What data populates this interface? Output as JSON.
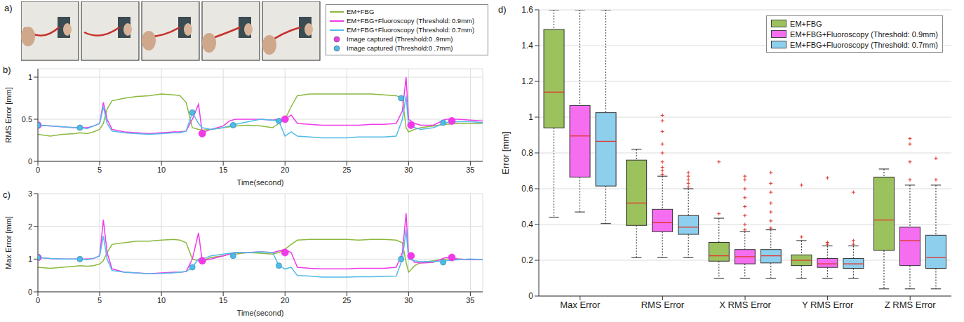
{
  "panel_a": {
    "label": "a)"
  },
  "chart_data": [
    {
      "type": "line",
      "label": "b)",
      "x_label": "Time(second)",
      "y_label": "RMS Error [mm]",
      "xlim": [
        0,
        36
      ],
      "xticks": [
        0,
        5,
        10,
        15,
        20,
        25,
        30,
        35
      ],
      "ylim": [
        0,
        1.1
      ],
      "yticks": [
        0,
        0.5,
        1
      ],
      "grid": true,
      "legend": "upper right",
      "x": [
        0,
        1,
        2,
        3,
        3.4,
        4,
        4.5,
        5,
        5.3,
        5.6,
        6,
        7,
        8,
        9,
        10,
        11,
        11.5,
        12,
        12.5,
        13,
        13.3,
        14,
        15,
        15.5,
        16,
        17,
        18,
        19,
        19.5,
        20,
        20.5,
        21,
        22,
        23,
        24,
        25,
        26,
        27,
        28,
        29,
        29.5,
        29.8,
        30,
        30.5,
        31,
        32,
        33,
        34,
        35,
        36
      ],
      "series": [
        {
          "name": "EM+FBG",
          "color": "#8cb83f",
          "values": [
            0.32,
            0.3,
            0.32,
            0.33,
            0.34,
            0.33,
            0.35,
            0.38,
            0.45,
            0.62,
            0.72,
            0.75,
            0.77,
            0.78,
            0.8,
            0.79,
            0.78,
            0.7,
            0.4,
            0.38,
            0.37,
            0.38,
            0.4,
            0.41,
            0.42,
            0.43,
            0.42,
            0.4,
            0.45,
            0.5,
            0.65,
            0.78,
            0.8,
            0.8,
            0.8,
            0.8,
            0.8,
            0.8,
            0.79,
            0.78,
            0.75,
            0.4,
            0.35,
            0.38,
            0.4,
            0.42,
            0.44,
            0.45,
            0.45,
            0.45
          ]
        },
        {
          "name": "EM+FBG+Fluoroscopy (Threshold: 0.9mm)",
          "color": "#f03ae8",
          "values": [
            0.43,
            0.42,
            0.41,
            0.4,
            0.4,
            0.4,
            0.42,
            0.45,
            0.7,
            0.5,
            0.38,
            0.35,
            0.34,
            0.33,
            0.34,
            0.35,
            0.35,
            0.36,
            0.5,
            0.68,
            0.34,
            0.38,
            0.42,
            0.48,
            0.5,
            0.5,
            0.5,
            0.49,
            0.5,
            0.5,
            0.55,
            0.45,
            0.44,
            0.43,
            0.43,
            0.43,
            0.43,
            0.44,
            0.44,
            0.45,
            0.6,
            1.0,
            0.5,
            0.45,
            0.43,
            0.43,
            0.5,
            0.5,
            0.49,
            0.48
          ]
        },
        {
          "name": "EM+FBG+Fluoroscopy (Threshold: 0.7mm)",
          "color": "#4fbbe9",
          "values": [
            0.43,
            0.42,
            0.41,
            0.4,
            0.4,
            0.39,
            0.42,
            0.45,
            0.65,
            0.45,
            0.36,
            0.34,
            0.33,
            0.32,
            0.33,
            0.34,
            0.34,
            0.36,
            0.58,
            0.45,
            0.4,
            0.38,
            0.4,
            0.42,
            0.44,
            0.47,
            0.5,
            0.49,
            0.48,
            0.3,
            0.35,
            0.3,
            0.29,
            0.28,
            0.28,
            0.28,
            0.29,
            0.29,
            0.29,
            0.3,
            0.5,
            0.78,
            0.42,
            0.4,
            0.38,
            0.4,
            0.46,
            0.47,
            0.47,
            0.46
          ]
        },
        {
          "name": "Image captured (Threshold:0 .9mm)",
          "type": "scatter",
          "marker": "circle",
          "color": "#f03ae8",
          "x": [
            0,
            13.3,
            20,
            30.2,
            33.5
          ],
          "values": [
            0.43,
            0.33,
            0.5,
            0.43,
            0.48
          ]
        },
        {
          "name": "Image captured (Threshold:0 .7mm)",
          "type": "scatter",
          "marker": "circle",
          "color": "#4fbbe9",
          "x": [
            0,
            3.4,
            12.5,
            15.8,
            19.5,
            29.4,
            32.8
          ],
          "values": [
            0.43,
            0.4,
            0.58,
            0.43,
            0.48,
            0.75,
            0.46
          ]
        }
      ]
    },
    {
      "type": "line",
      "label": "c)",
      "x_label": "Time(second)",
      "y_label": "Max Error [mm]",
      "xlim": [
        0,
        36
      ],
      "xticks": [
        0,
        5,
        10,
        15,
        20,
        25,
        30,
        35
      ],
      "ylim": [
        0,
        3
      ],
      "yticks": [
        0,
        1,
        2,
        3
      ],
      "grid": true,
      "x": [
        0,
        1,
        2,
        3,
        3.4,
        4,
        4.5,
        5,
        5.3,
        5.6,
        6,
        7,
        8,
        9,
        10,
        11,
        11.5,
        12,
        12.5,
        13,
        13.3,
        14,
        15,
        15.5,
        16,
        17,
        18,
        19,
        19.5,
        20,
        20.5,
        21,
        22,
        23,
        24,
        25,
        26,
        27,
        28,
        29,
        29.5,
        29.8,
        30,
        30.5,
        31,
        32,
        33,
        34,
        35,
        36
      ],
      "series": [
        {
          "name": "EM+FBG",
          "color": "#8cb83f",
          "values": [
            0.75,
            0.72,
            0.75,
            0.78,
            0.8,
            0.78,
            0.8,
            0.85,
            0.95,
            1.2,
            1.45,
            1.5,
            1.55,
            1.55,
            1.58,
            1.6,
            1.58,
            1.5,
            1.0,
            0.95,
            0.95,
            1.05,
            1.1,
            1.15,
            1.15,
            1.2,
            1.18,
            1.15,
            1.2,
            1.3,
            1.45,
            1.58,
            1.6,
            1.6,
            1.6,
            1.6,
            1.58,
            1.6,
            1.6,
            1.58,
            1.5,
            0.9,
            0.6,
            0.8,
            0.9,
            0.95,
            1.0,
            1.0,
            0.98,
            0.98
          ]
        },
        {
          "name": "EM+FBG+Fluoroscopy (Threshold: 0.9mm)",
          "color": "#f03ae8",
          "values": [
            1.05,
            1.02,
            1.0,
            1.0,
            1.0,
            1.0,
            1.02,
            1.1,
            2.2,
            1.2,
            0.7,
            0.6,
            0.58,
            0.55,
            0.58,
            0.6,
            0.6,
            0.62,
            1.0,
            1.8,
            0.95,
            1.0,
            1.1,
            1.15,
            1.2,
            1.2,
            1.22,
            1.2,
            1.25,
            1.3,
            1.2,
            0.75,
            0.72,
            0.7,
            0.7,
            0.7,
            0.72,
            0.72,
            0.72,
            0.75,
            1.2,
            2.4,
            1.1,
            0.9,
            0.88,
            0.9,
            1.05,
            1.0,
            0.98,
            0.98
          ]
        },
        {
          "name": "EM+FBG+Fluoroscopy (Threshold: 0.7mm)",
          "color": "#4fbbe9",
          "values": [
            1.05,
            1.02,
            1.0,
            1.0,
            1.0,
            0.98,
            1.02,
            1.1,
            1.7,
            1.0,
            0.65,
            0.6,
            0.58,
            0.55,
            0.56,
            0.58,
            0.6,
            0.62,
            0.75,
            1.0,
            1.0,
            1.1,
            1.15,
            1.18,
            1.2,
            1.2,
            1.22,
            1.2,
            0.8,
            0.7,
            0.75,
            0.5,
            0.48,
            0.45,
            0.45,
            0.45,
            0.46,
            0.46,
            0.47,
            0.48,
            1.0,
            1.9,
            1.0,
            0.95,
            0.92,
            0.92,
            0.95,
            0.98,
            1.0,
            0.98
          ]
        },
        {
          "name": "Image captured (Threshold:0 .9mm)",
          "type": "scatter",
          "marker": "circle",
          "color": "#f03ae8",
          "x": [
            0,
            13.3,
            20,
            30.2,
            33.5
          ],
          "values": [
            1.05,
            0.95,
            1.2,
            1.1,
            1.05
          ]
        },
        {
          "name": "Image captured (Threshold:0 .7mm)",
          "type": "scatter",
          "marker": "circle",
          "color": "#4fbbe9",
          "x": [
            0,
            3.4,
            12.5,
            15.8,
            19.5,
            29.4,
            32.8
          ],
          "values": [
            1.05,
            1.0,
            0.75,
            1.1,
            0.8,
            1.0,
            0.9
          ]
        }
      ]
    },
    {
      "type": "box",
      "label": "d)",
      "y_label": "Error [mm]",
      "ylim": [
        0,
        1.6
      ],
      "yticks": [
        0,
        0.2,
        0.4,
        0.6,
        0.8,
        1,
        1.2,
        1.4,
        1.6
      ],
      "grid": true,
      "legend": "upper right",
      "categories": [
        "Max Error",
        "RMS Error",
        "X RMS Error",
        "Y RMS Error",
        "Z RMS Error"
      ],
      "series": [
        {
          "name": "EM+FBG",
          "color": "#9cc25e",
          "low": [
            0.44,
            0.215,
            0.1,
            0.1,
            0.04
          ],
          "q1": [
            0.94,
            0.395,
            0.195,
            0.17,
            0.255
          ],
          "median": [
            1.14,
            0.52,
            0.225,
            0.2,
            0.425
          ],
          "q3": [
            1.49,
            0.76,
            0.3,
            0.23,
            0.665
          ],
          "high": [
            1.6,
            0.82,
            0.435,
            0.31,
            0.71
          ],
          "outliers": [
            [],
            [],
            [
              0.46,
              0.75
            ],
            [
              0.33,
              0.62
            ],
            []
          ]
        },
        {
          "name": "EM+FBG+Fluoroscopy (Threshold: 0.9mm)",
          "color": "#f56ef0",
          "low": [
            0.47,
            0.215,
            0.1,
            0.1,
            0.04
          ],
          "q1": [
            0.665,
            0.36,
            0.18,
            0.16,
            0.17
          ],
          "median": [
            0.895,
            0.41,
            0.22,
            0.18,
            0.31
          ],
          "q3": [
            1.065,
            0.485,
            0.26,
            0.21,
            0.385
          ],
          "high": [
            1.6,
            0.67,
            0.36,
            0.28,
            0.62
          ],
          "outliers": [
            [],
            [
              0.68,
              0.7,
              0.72,
              0.75,
              0.8,
              0.85,
              0.92,
              0.98,
              1.01
            ],
            [
              0.37,
              0.4,
              0.45,
              0.5,
              0.55,
              0.6,
              0.65,
              0.67
            ],
            [
              0.29,
              0.3,
              0.66
            ],
            [
              0.65,
              0.75,
              0.85,
              0.88
            ]
          ]
        },
        {
          "name": "EM+FBG+Fluoroscopy (Threshold: 0.7mm)",
          "color": "#8ecfee",
          "low": [
            0.405,
            0.215,
            0.1,
            0.1,
            0.04
          ],
          "q1": [
            0.615,
            0.345,
            0.185,
            0.155,
            0.155
          ],
          "median": [
            0.865,
            0.385,
            0.225,
            0.18,
            0.215
          ],
          "q3": [
            1.025,
            0.45,
            0.26,
            0.21,
            0.34
          ],
          "high": [
            1.6,
            0.6,
            0.37,
            0.28,
            0.62
          ],
          "outliers": [
            [],
            [
              0.61,
              0.63,
              0.65,
              0.67,
              0.69
            ],
            [
              0.38,
              0.42,
              0.47,
              0.52,
              0.58,
              0.63,
              0.69
            ],
            [
              0.29,
              0.31,
              0.58
            ],
            [
              0.65,
              0.77
            ]
          ]
        }
      ]
    }
  ]
}
